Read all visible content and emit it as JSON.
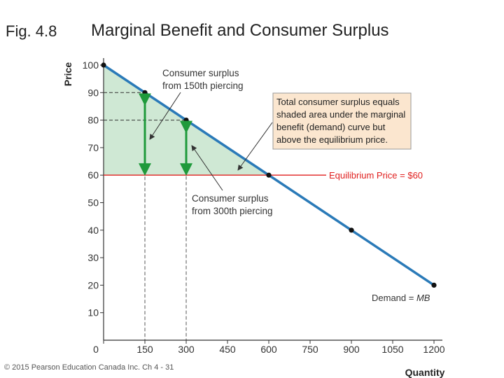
{
  "slide": {
    "figure_label": "Fig. 4.8",
    "title": "Marginal Benefit and Consumer Surplus",
    "copyright": "© 2015 Pearson Education Canada Inc. Ch 4 - 31"
  },
  "colors": {
    "demand_line": "#2a7ab8",
    "shaded_area": "#cfe8d4",
    "equilibrium_line": "#e0201f",
    "arrow": "#1f9a3b",
    "note_box_bg": "#fbe6cf",
    "note_box_border": "#999999",
    "point": "#111111"
  },
  "chart_data": {
    "type": "line",
    "xlabel": "Quantity",
    "ylabel": "Price",
    "xlim": [
      0,
      1200
    ],
    "ylim": [
      0,
      100
    ],
    "x_ticks": [
      0,
      150,
      300,
      450,
      600,
      750,
      900,
      1050,
      1200
    ],
    "y_ticks": [
      10,
      20,
      30,
      40,
      50,
      60,
      70,
      80,
      90,
      100
    ],
    "series": [
      {
        "name": "Demand = MB",
        "x": [
          0,
          1200
        ],
        "y": [
          100,
          20
        ]
      }
    ],
    "points": [
      {
        "x": 0,
        "y": 100
      },
      {
        "x": 150,
        "y": 90
      },
      {
        "x": 300,
        "y": 80
      },
      {
        "x": 600,
        "y": 60
      },
      {
        "x": 900,
        "y": 40
      },
      {
        "x": 1200,
        "y": 20
      }
    ],
    "equilibrium": {
      "price": 60,
      "quantity": 600,
      "label": "Equilibrium Price = $60"
    },
    "demand_label_prefix": "Demand = ",
    "demand_label_suffix": "MB",
    "surplus_arrows": [
      {
        "x": 150,
        "from": 90,
        "to": 60
      },
      {
        "x": 300,
        "from": 80,
        "to": 60
      }
    ],
    "annotations": {
      "cs150": [
        "Consumer surplus",
        "from 150th piercing"
      ],
      "cs300": [
        "Consumer surplus",
        "from 300th piercing"
      ],
      "note": [
        "Total consumer surplus equals",
        "shaded area under the marginal",
        "benefit (demand) curve but",
        "above the equilibrium price."
      ]
    }
  }
}
